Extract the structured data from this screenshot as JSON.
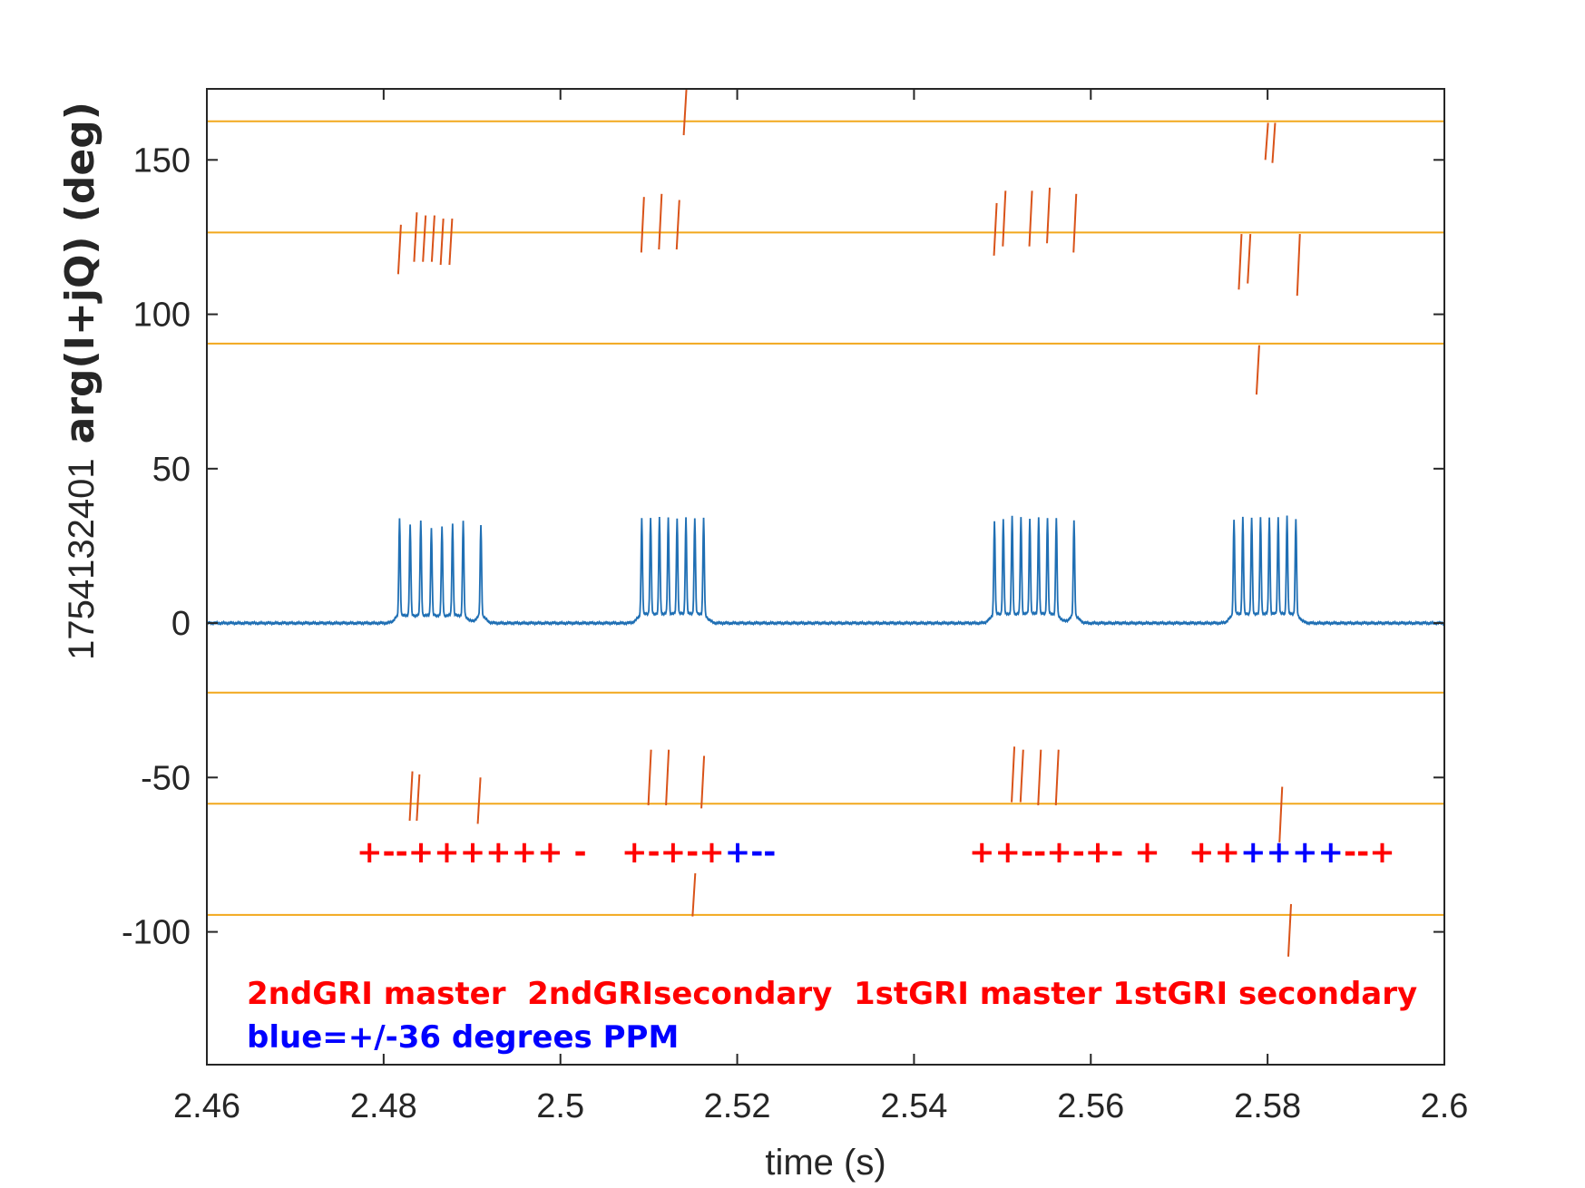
{
  "chart_data": {
    "type": "line",
    "xlabel": "time (s)",
    "ylabel_prefix": "1754132401",
    "ylabel_main": "arg(I+jQ) (deg)",
    "xlim": [
      2.46,
      2.6
    ],
    "ylim": [
      -143,
      173
    ],
    "x_ticks": [
      2.46,
      2.48,
      2.5,
      2.52,
      2.54,
      2.56,
      2.58,
      2.6
    ],
    "x_tick_labels": [
      "2.46",
      "2.48",
      "2.5",
      "2.52",
      "2.54",
      "2.56",
      "2.58",
      "2.6"
    ],
    "y_ticks": [
      -100,
      -50,
      0,
      50,
      100,
      150
    ],
    "y_tick_labels": [
      "-100",
      "-50",
      "0",
      "50",
      "100",
      "150"
    ],
    "grid": false,
    "colors": {
      "signal": "#1f6fb4",
      "reference": "#f2a81d",
      "phase": "#d95319",
      "red_text": "#ff0000",
      "blue_text": "#0000ff",
      "axis": "#262626"
    },
    "reference_lines": [
      162.5,
      126.5,
      90.5,
      -22.5,
      -58.5,
      -94.5
    ],
    "pulse_groups": [
      {
        "times": [
          2.4818,
          2.483,
          2.4842,
          2.4854,
          2.4866,
          2.4878,
          2.489,
          2.491
        ],
        "peaks": [
          31.5,
          29,
          30.5,
          28,
          28.5,
          29.5,
          30.5,
          29.5
        ]
      },
      {
        "times": [
          2.5092,
          2.5102,
          2.5112,
          2.5122,
          2.5132,
          2.5142,
          2.5152,
          2.5162
        ],
        "peaks": [
          31,
          31,
          31,
          31,
          31,
          31,
          31,
          31
        ]
      },
      {
        "times": [
          2.5491,
          2.5501,
          2.5511,
          2.5521,
          2.5531,
          2.5541,
          2.5551,
          2.5561,
          2.5581
        ],
        "peaks": [
          30,
          30.5,
          31.5,
          31,
          31,
          31,
          31,
          31,
          31
        ]
      },
      {
        "times": [
          2.5762,
          2.5772,
          2.5782,
          2.5792,
          2.5802,
          2.5812,
          2.5822,
          2.5832
        ],
        "peaks": [
          31,
          31,
          31,
          31,
          31,
          31.5,
          31.5,
          31
        ]
      }
    ],
    "phase_marks": [
      {
        "t": 2.4818,
        "y0": 113,
        "y1": 129
      },
      {
        "t": 2.4836,
        "y0": 117,
        "y1": 133
      },
      {
        "t": 2.4846,
        "y0": 117,
        "y1": 132
      },
      {
        "t": 2.4856,
        "y0": 117,
        "y1": 132
      },
      {
        "t": 2.4866,
        "y0": 116,
        "y1": 131
      },
      {
        "t": 2.4876,
        "y0": 116,
        "y1": 131
      },
      {
        "t": 2.5093,
        "y0": 120,
        "y1": 138
      },
      {
        "t": 2.5113,
        "y0": 121,
        "y1": 139
      },
      {
        "t": 2.5133,
        "y0": 121,
        "y1": 137
      },
      {
        "t": 2.5141,
        "y0": 158,
        "y1": 173
      },
      {
        "t": 2.5492,
        "y0": 119,
        "y1": 136
      },
      {
        "t": 2.5502,
        "y0": 122,
        "y1": 140
      },
      {
        "t": 2.5532,
        "y0": 122,
        "y1": 140
      },
      {
        "t": 2.5552,
        "y0": 123,
        "y1": 141
      },
      {
        "t": 2.5582,
        "y0": 120,
        "y1": 139
      },
      {
        "t": 2.5769,
        "y0": 108,
        "y1": 126
      },
      {
        "t": 2.5779,
        "y0": 110,
        "y1": 126
      },
      {
        "t": 2.5789,
        "y0": 74,
        "y1": 90
      },
      {
        "t": 2.5799,
        "y0": 150,
        "y1": 162
      },
      {
        "t": 2.5807,
        "y0": 149,
        "y1": 162
      },
      {
        "t": 2.5835,
        "y0": 106,
        "y1": 126
      },
      {
        "t": 2.4831,
        "y0": -64,
        "y1": -48
      },
      {
        "t": 2.4839,
        "y0": -64,
        "y1": -49
      },
      {
        "t": 2.4908,
        "y0": -65,
        "y1": -50
      },
      {
        "t": 2.5101,
        "y0": -59,
        "y1": -41
      },
      {
        "t": 2.5121,
        "y0": -59,
        "y1": -41
      },
      {
        "t": 2.5161,
        "y0": -60,
        "y1": -43
      },
      {
        "t": 2.5151,
        "y0": -95,
        "y1": -81
      },
      {
        "t": 2.5512,
        "y0": -58,
        "y1": -40
      },
      {
        "t": 2.5522,
        "y0": -58,
        "y1": -41
      },
      {
        "t": 2.5542,
        "y0": -59,
        "y1": -41
      },
      {
        "t": 2.5562,
        "y0": -59,
        "y1": -41
      },
      {
        "t": 2.5815,
        "y0": -71,
        "y1": -53
      },
      {
        "t": 2.5825,
        "y0": -108,
        "y1": -91
      }
    ],
    "symbol_groups": [
      {
        "segments": [
          {
            "text": "+--++++++ -",
            "color": "red"
          }
        ]
      },
      {
        "segments": [
          {
            "text": "+-+-+",
            "color": "red"
          },
          {
            "text": "+",
            "color": "blue"
          },
          {
            "text": "--",
            "color": "blue"
          }
        ]
      },
      {
        "segments": [
          {
            "text": "++--+-+- +",
            "color": "red"
          }
        ]
      },
      {
        "segments": [
          {
            "text": "++",
            "color": "red"
          },
          {
            "text": "+++",
            "color": "blue"
          },
          {
            "text": "+",
            "color": "blue"
          },
          {
            "text": "--",
            "color": "red"
          },
          {
            "text": "+",
            "color": "red"
          }
        ]
      }
    ],
    "legend_line1": "2ndGRI master  2ndGRIsecondary  1stGRI master 1stGRI secondary",
    "legend_line2": "blue=+/-36 degrees PPM"
  }
}
